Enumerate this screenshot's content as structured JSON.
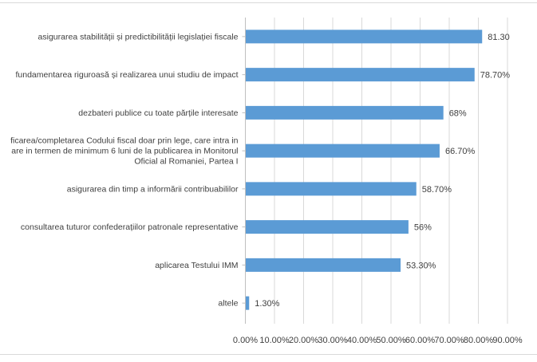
{
  "chart_data": {
    "type": "bar",
    "orientation": "horizontal",
    "title": "",
    "xlabel": "",
    "ylabel": "",
    "xlim": [
      0,
      90
    ],
    "grid": true,
    "bar_color": "#5b9bd5",
    "categories": [
      {
        "lines": [
          "asigurarea stabilității și predictibilității legislației fiscale"
        ],
        "value": 81.3,
        "label": "81.30"
      },
      {
        "lines": [
          "fundamentarea riguroasă și realizarea unui studiu de impact"
        ],
        "value": 78.7,
        "label": "78.70%"
      },
      {
        "lines": [
          "dezbateri publice cu toate părțile interesate"
        ],
        "value": 68,
        "label": "68%"
      },
      {
        "lines": [
          "ficarea/completarea Codului fiscal doar prin lege, care intra in",
          "are in termen de minimum 6 luni de la publicarea in Monitorul",
          "Oficial al Romaniei, Partea I"
        ],
        "value": 66.7,
        "label": "66.70%"
      },
      {
        "lines": [
          "asigurarea din timp a informării contribuabililor"
        ],
        "value": 58.7,
        "label": "58.70%"
      },
      {
        "lines": [
          "consultarea tuturor confederațiilor patronale representative"
        ],
        "value": 56,
        "label": "56%"
      },
      {
        "lines": [
          "aplicarea Testului IMM"
        ],
        "value": 53.3,
        "label": "53.30%"
      },
      {
        "lines": [
          "altele"
        ],
        "value": 1.3,
        "label": "1.30%"
      }
    ],
    "ticks": [
      {
        "value": 0,
        "label": "0.00%"
      },
      {
        "value": 10,
        "label": "10.00%"
      },
      {
        "value": 20,
        "label": "20.00%"
      },
      {
        "value": 30,
        "label": "30.00%"
      },
      {
        "value": 40,
        "label": "40.00%"
      },
      {
        "value": 50,
        "label": "50.00%"
      },
      {
        "value": 60,
        "label": "60.00%"
      },
      {
        "value": 70,
        "label": "70.00%"
      },
      {
        "value": 80,
        "label": "80.00%"
      },
      {
        "value": 90,
        "label": "90.00%"
      }
    ]
  }
}
